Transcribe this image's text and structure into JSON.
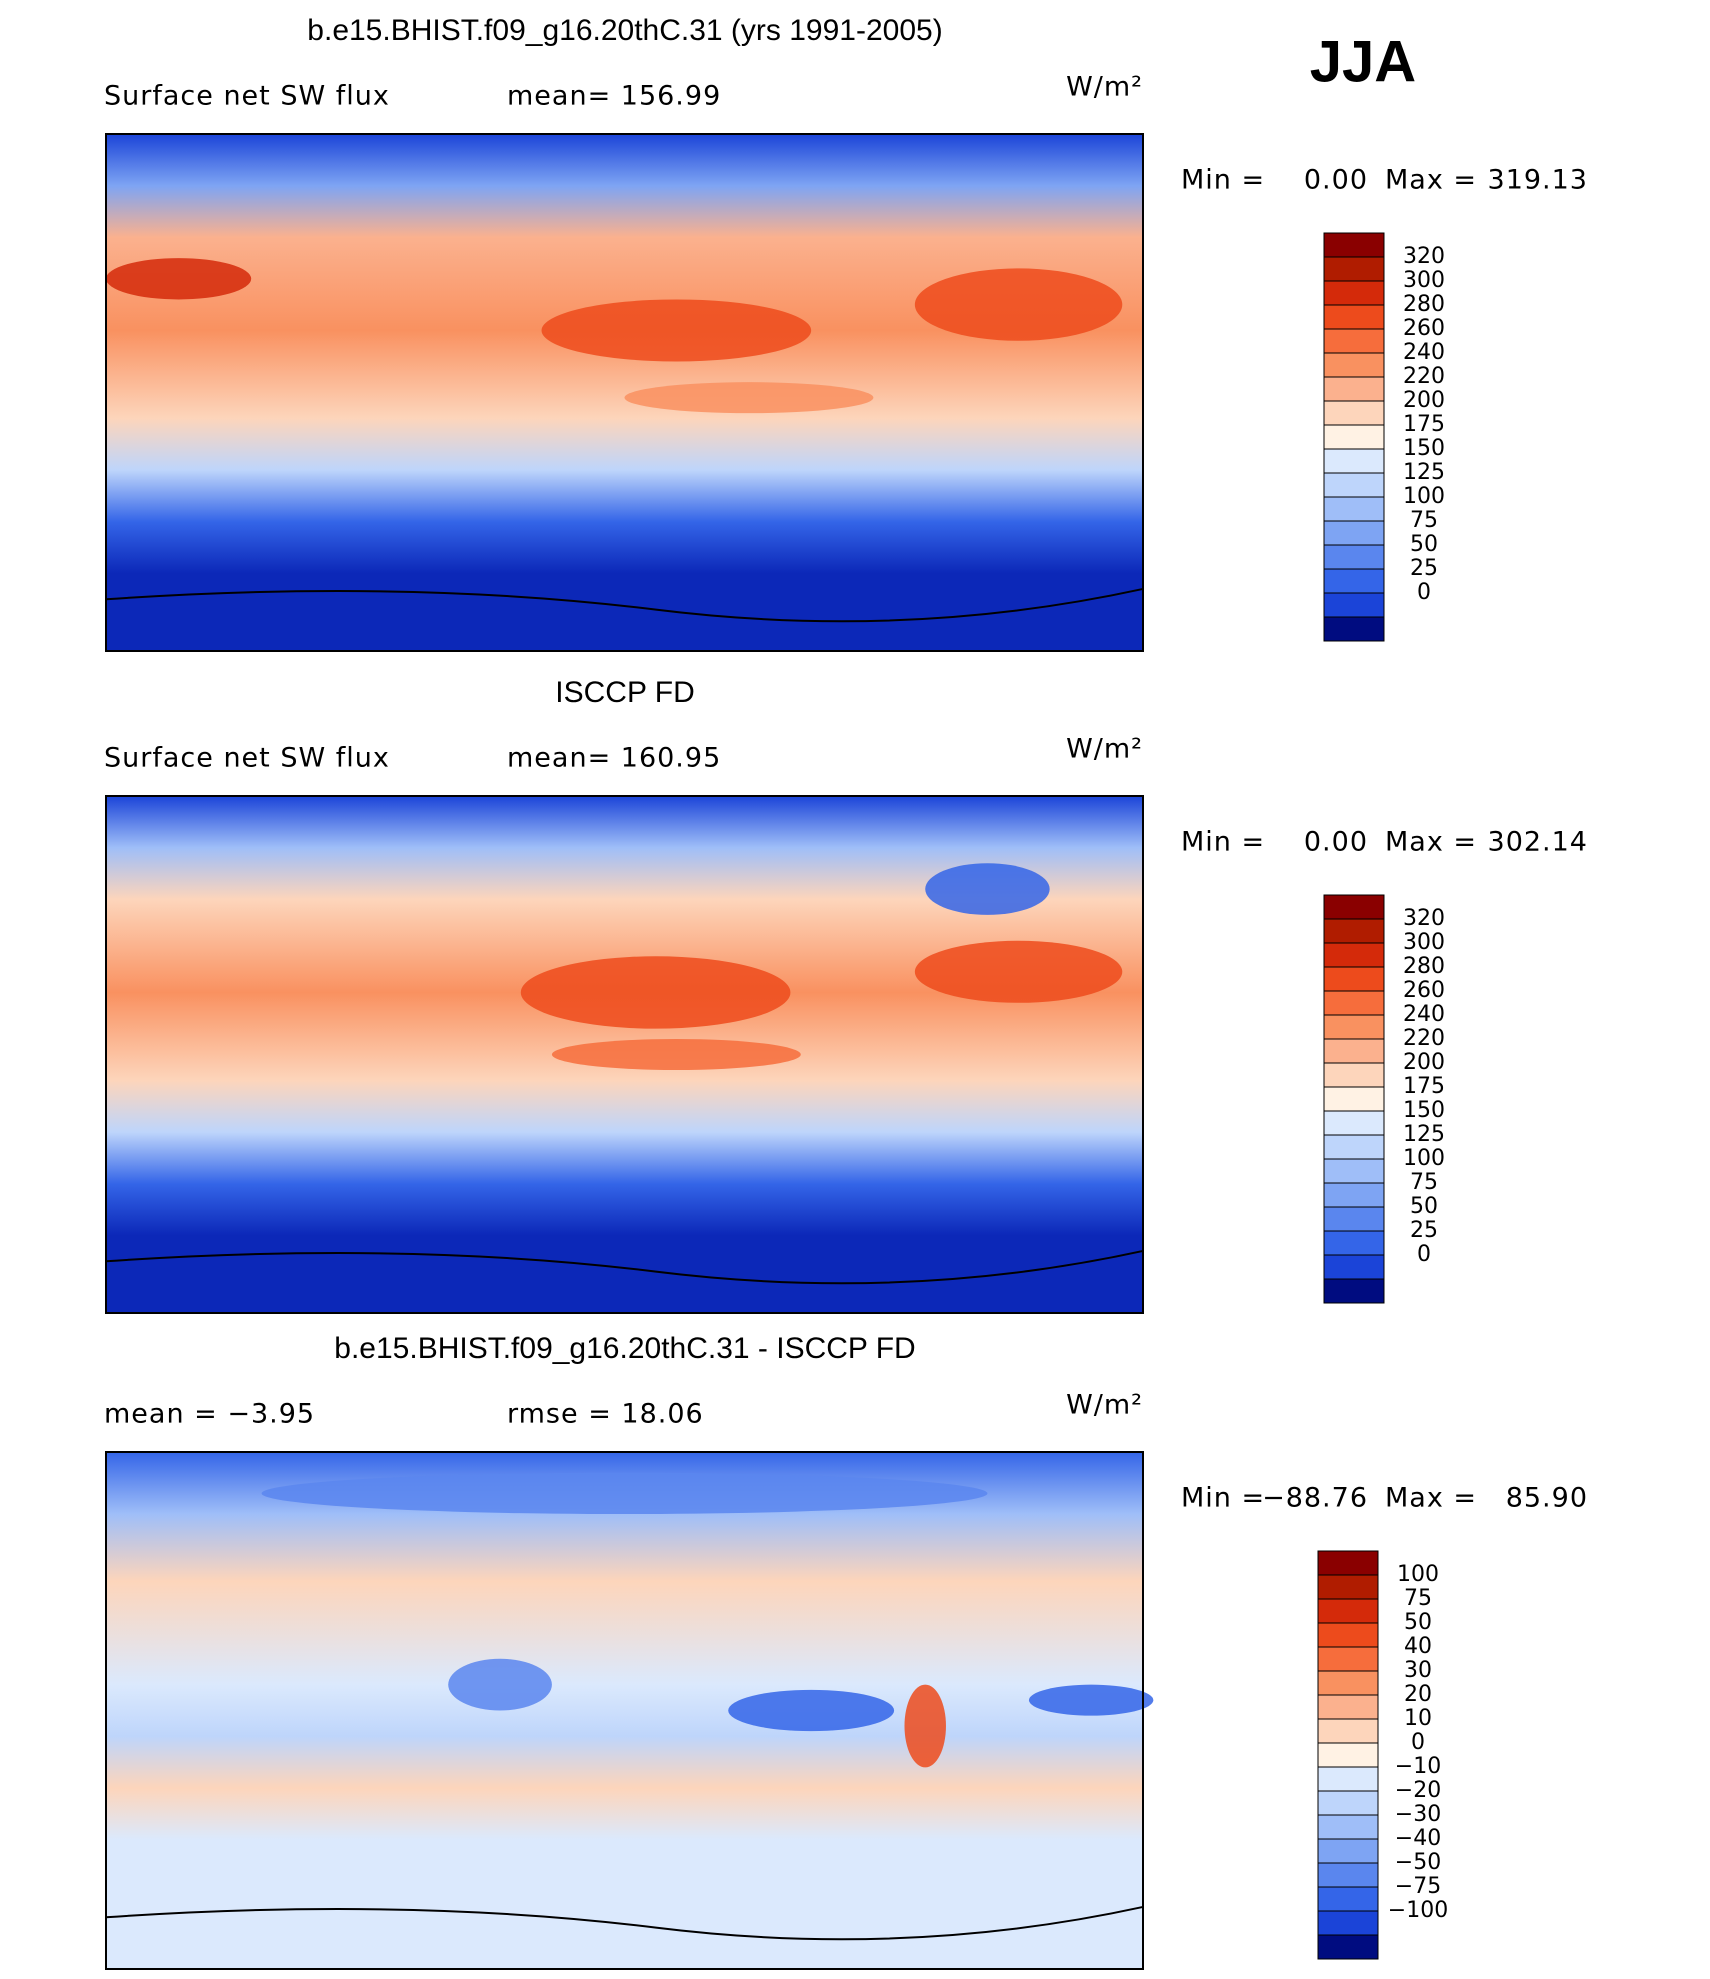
{
  "header": {
    "season": "JJA"
  },
  "panels": [
    {
      "title": "b.e15.BHIST.f09_g16.20thC.31 (yrs 1991-2005)",
      "left_label": "Surface net SW flux",
      "center_label": "mean= 156.99",
      "units": "W/m²",
      "min_label": "Min =",
      "min": "0.00",
      "max_label": "Max =",
      "max": "319.13",
      "colorbar": {
        "colors": [
          "#8a0000",
          "#b01c00",
          "#d42a0a",
          "#ed4b1c",
          "#f66d3c",
          "#f99160",
          "#fbb18e",
          "#fdd5bb",
          "#fff2e4",
          "#dbe9fd",
          "#bed5fb",
          "#9fbef8",
          "#7ea4f3",
          "#5a86ee",
          "#3465e8",
          "#1b44d8",
          "#000c80"
        ],
        "labels": [
          "320",
          "300",
          "280",
          "260",
          "240",
          "220",
          "200",
          "175",
          "150",
          "125",
          "100",
          "75",
          "50",
          "25",
          "0"
        ]
      }
    },
    {
      "title": "ISCCP FD",
      "left_label": "Surface net SW flux",
      "center_label": "mean= 160.95",
      "units": "W/m²",
      "min_label": "Min =",
      "min": "0.00",
      "max_label": "Max =",
      "max": "302.14",
      "colorbar": {
        "colors": [
          "#8a0000",
          "#b01c00",
          "#d42a0a",
          "#ed4b1c",
          "#f66d3c",
          "#f99160",
          "#fbb18e",
          "#fdd5bb",
          "#fff2e4",
          "#dbe9fd",
          "#bed5fb",
          "#9fbef8",
          "#7ea4f3",
          "#5a86ee",
          "#3465e8",
          "#1b44d8",
          "#000c80"
        ],
        "labels": [
          "320",
          "300",
          "280",
          "260",
          "240",
          "220",
          "200",
          "175",
          "150",
          "125",
          "100",
          "75",
          "50",
          "25",
          "0"
        ]
      }
    },
    {
      "title": "b.e15.BHIST.f09_g16.20thC.31 - ISCCP FD",
      "left_label": "mean = −3.95",
      "center_label": "rmse = 18.06",
      "units": "W/m²",
      "min_label": "Min =",
      "min": "−88.76",
      "max_label": "Max =",
      "max": "85.90",
      "colorbar": {
        "colors": [
          "#8a0000",
          "#b01c00",
          "#d42a0a",
          "#ed4b1c",
          "#f66d3c",
          "#f99160",
          "#fbb18e",
          "#fdd5bb",
          "#fff2e4",
          "#dbe9fd",
          "#bed5fb",
          "#9fbef8",
          "#7ea4f3",
          "#5a86ee",
          "#3465e8",
          "#1b44d8",
          "#000c80"
        ],
        "labels": [
          "100",
          "75",
          "50",
          "40",
          "30",
          "20",
          "10",
          "0",
          "−10",
          "−20",
          "−30",
          "−40",
          "−50",
          "−75",
          "−100"
        ]
      }
    }
  ]
}
